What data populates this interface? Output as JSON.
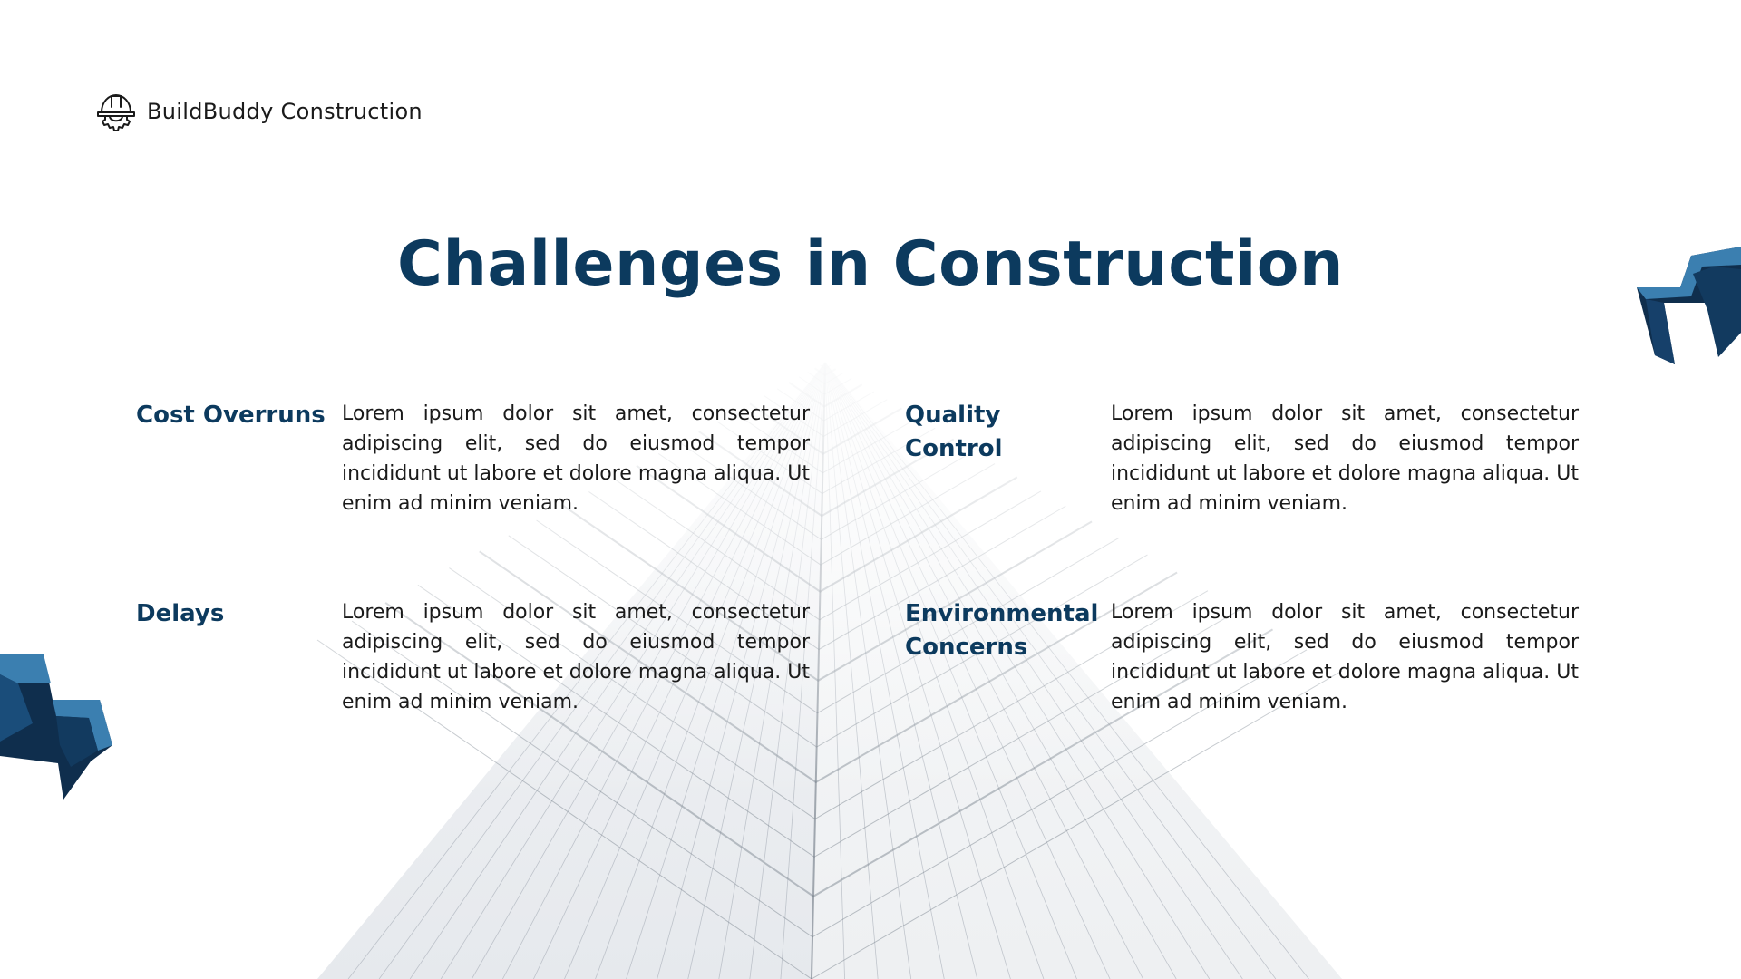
{
  "brand": {
    "name": "BuildBuddy Construction",
    "icon": "hardhat-gear-icon"
  },
  "title": "Challenges in Construction",
  "items": [
    {
      "heading": "Cost Overruns",
      "text": "Lorem ipsum dolor sit amet, consectetur adipiscing elit, sed do eiusmod tempor incididunt ut labore et dolore magna aliqua. Ut enim ad minim veniam."
    },
    {
      "heading": "Quality Control",
      "text": "Lorem ipsum dolor sit amet, consectetur adipiscing elit, sed do eiusmod tempor incididunt ut labore et dolore magna aliqua. Ut enim ad minim veniam."
    },
    {
      "heading": "Delays",
      "text": "Lorem ipsum dolor sit amet, consectetur adipiscing elit, sed do eiusmod tempor incididunt ut labore et dolore magna aliqua. Ut enim ad minim veniam."
    },
    {
      "heading": "Environmental Concerns",
      "text": "Lorem ipsum dolor sit amet, consectetur adipiscing elit, sed do eiusmod tempor incididunt ut labore et dolore magna aliqua. Ut enim ad minim veniam."
    }
  ],
  "colors": {
    "accent": "#0c3a5e",
    "decor_light": "#3b7fb0",
    "decor_dark": "#0f2e4d",
    "text": "#1a1a1a",
    "background": "#ffffff"
  }
}
